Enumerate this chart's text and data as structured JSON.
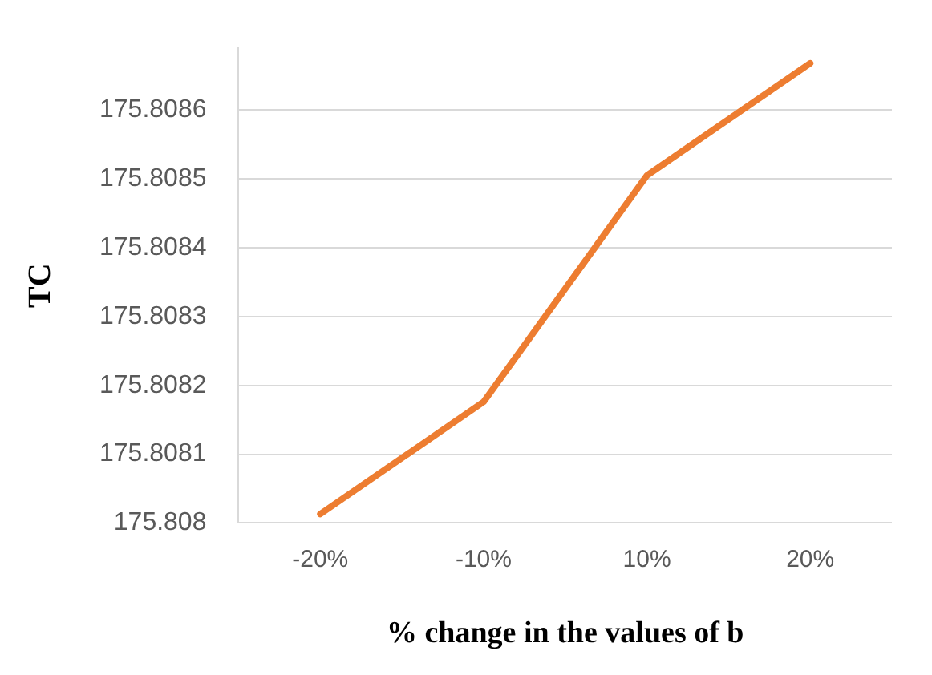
{
  "chart_data": {
    "type": "line",
    "xlabel": "% change in the values of b",
    "ylabel": "TC",
    "categories": [
      "-20%",
      "-10%",
      "10%",
      "20%"
    ],
    "series": [
      {
        "color": "#ed7d31",
        "values": [
          175.808013,
          175.808176,
          175.808505,
          175.808668
        ]
      }
    ],
    "ylim": [
      175.808,
      175.80869
    ],
    "yticks": [
      175.808,
      175.8081,
      175.8082,
      175.8083,
      175.8084,
      175.8085,
      175.8086
    ],
    "grid": "y",
    "legend": false,
    "marker": "none",
    "line_style": "solid"
  }
}
